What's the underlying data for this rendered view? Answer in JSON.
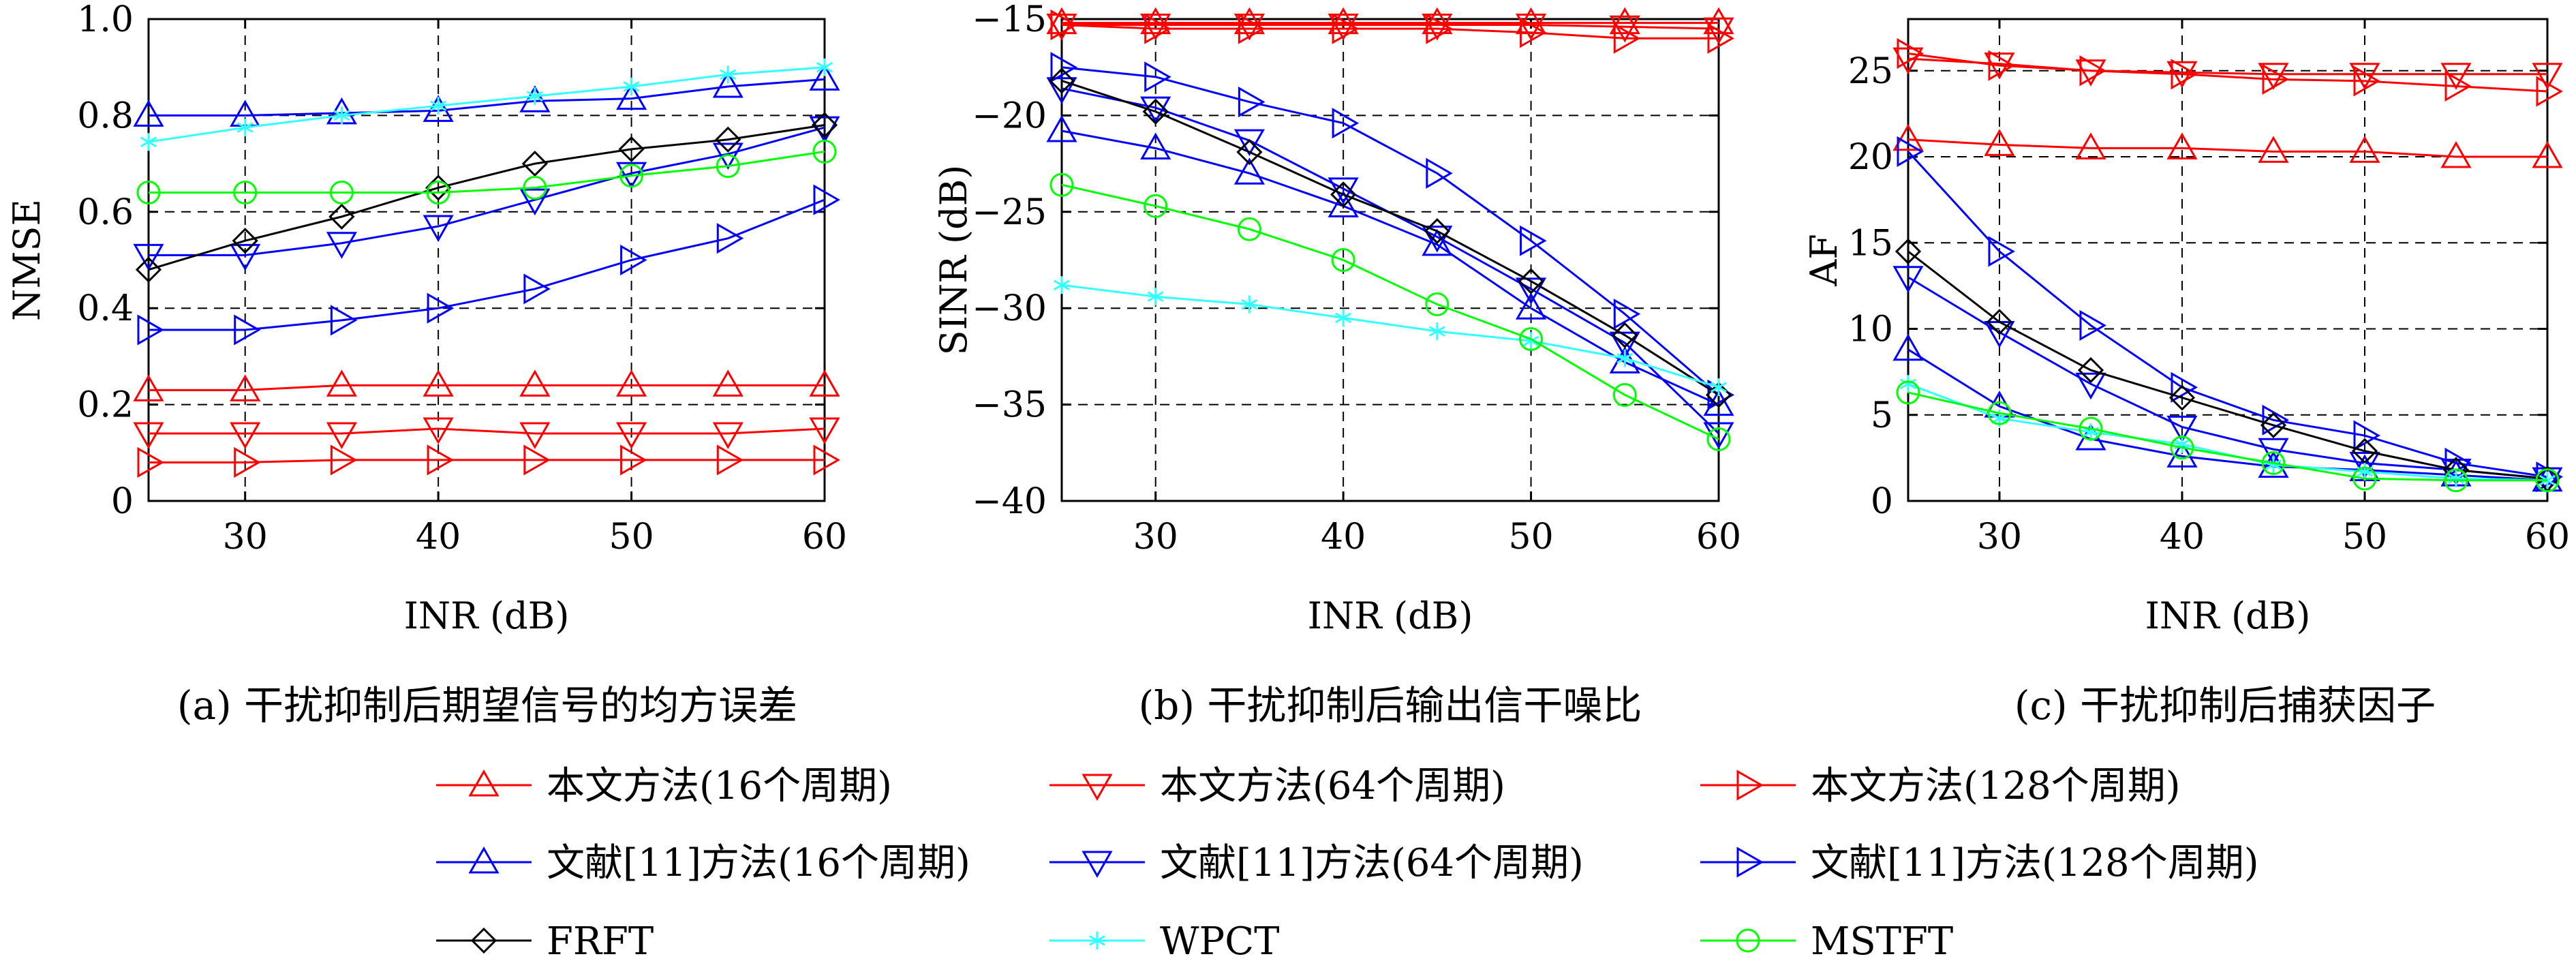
{
  "colors": {
    "red": "#ff0000",
    "blue": "#0000ff",
    "black": "#000000",
    "cyan": "#33ffff",
    "green": "#00ff00"
  },
  "legend": [
    {
      "name": "本文方法(16个周期)",
      "color": "#ff0000",
      "marker": "triangle-up"
    },
    {
      "name": "本文方法(64个周期)",
      "color": "#ff0000",
      "marker": "triangle-down"
    },
    {
      "name": "本文方法(128个周期)",
      "color": "#ff0000",
      "marker": "triangle-right"
    },
    {
      "name": "文献[11]方法(16个周期)",
      "color": "#0000ff",
      "marker": "triangle-up"
    },
    {
      "name": "文献[11]方法(64个周期)",
      "color": "#0000ff",
      "marker": "triangle-down"
    },
    {
      "name": "文献[11]方法(128个周期)",
      "color": "#0000ff",
      "marker": "triangle-right"
    },
    {
      "name": "FRFT",
      "color": "#000000",
      "marker": "diamond"
    },
    {
      "name": "WPCT",
      "color": "#33ffff",
      "marker": "asterisk"
    },
    {
      "name": "MSTFT",
      "color": "#00ff00",
      "marker": "circle"
    }
  ],
  "chart_data": [
    {
      "type": "line",
      "caption": "(a) 干扰抑制后期望信号的均方误差",
      "xlabel": "INR (dB)",
      "ylabel": "NMSE",
      "xlim": [
        25,
        60
      ],
      "ylim": [
        0,
        1.0
      ],
      "xticks": [
        30,
        40,
        50,
        60
      ],
      "yticks": [
        0,
        0.2,
        0.4,
        0.6,
        0.8,
        1.0
      ],
      "ytick_labels": [
        "0",
        "0.2",
        "0.4",
        "0.6",
        "0.8",
        "1.0"
      ],
      "grid": true,
      "x": [
        25,
        30,
        35,
        40,
        45,
        50,
        55,
        60
      ],
      "series": [
        {
          "name": "本文方法(16个周期)",
          "values": [
            0.23,
            0.23,
            0.24,
            0.24,
            0.24,
            0.24,
            0.24,
            0.24
          ]
        },
        {
          "name": "本文方法(64个周期)",
          "values": [
            0.14,
            0.14,
            0.14,
            0.15,
            0.14,
            0.14,
            0.14,
            0.15
          ]
        },
        {
          "name": "本文方法(128个周期)",
          "values": [
            0.08,
            0.08,
            0.085,
            0.085,
            0.085,
            0.085,
            0.085,
            0.085
          ]
        },
        {
          "name": "文献[11]方法(16个周期)",
          "values": [
            0.8,
            0.8,
            0.805,
            0.81,
            0.83,
            0.835,
            0.86,
            0.875
          ]
        },
        {
          "name": "文献[11]方法(64个周期)",
          "values": [
            0.51,
            0.51,
            0.535,
            0.57,
            0.625,
            0.68,
            0.72,
            0.775
          ]
        },
        {
          "name": "文献[11]方法(128个周期)",
          "values": [
            0.355,
            0.355,
            0.375,
            0.4,
            0.44,
            0.5,
            0.545,
            0.625
          ]
        },
        {
          "name": "FRFT",
          "values": [
            0.48,
            0.54,
            0.59,
            0.65,
            0.7,
            0.73,
            0.75,
            0.78
          ]
        },
        {
          "name": "WPCT",
          "values": [
            0.745,
            0.775,
            0.8,
            0.82,
            0.84,
            0.86,
            0.885,
            0.9
          ]
        },
        {
          "name": "MSTFT",
          "values": [
            0.64,
            0.64,
            0.64,
            0.64,
            0.65,
            0.675,
            0.695,
            0.725
          ]
        }
      ]
    },
    {
      "type": "line",
      "caption": "(b) 干扰抑制后输出信干噪比",
      "xlabel": "INR (dB)",
      "ylabel": "SINR (dB)",
      "xlim": [
        25,
        60
      ],
      "ylim": [
        -40,
        -15
      ],
      "xticks": [
        30,
        40,
        50,
        60
      ],
      "yticks": [
        -40,
        -35,
        -30,
        -25,
        -20,
        -15
      ],
      "ytick_labels": [
        "−40",
        "−35",
        "−30",
        "−25",
        "−20",
        "−15"
      ],
      "grid": true,
      "x": [
        25,
        30,
        35,
        40,
        45,
        50,
        55,
        60
      ],
      "series": [
        {
          "name": "本文方法(16个周期)",
          "values": [
            -15.2,
            -15.2,
            -15.2,
            -15.2,
            -15.2,
            -15.2,
            -15.2,
            -15.2
          ]
        },
        {
          "name": "本文方法(64个周期)",
          "values": [
            -15.3,
            -15.3,
            -15.3,
            -15.3,
            -15.3,
            -15.3,
            -15.4,
            -15.5
          ]
        },
        {
          "name": "本文方法(128个周期)",
          "values": [
            -15.3,
            -15.5,
            -15.5,
            -15.5,
            -15.5,
            -15.7,
            -16.0,
            -16.0
          ]
        },
        {
          "name": "文献[11]方法(16个周期)",
          "values": [
            -20.8,
            -21.7,
            -23.0,
            -24.7,
            -26.7,
            -30.0,
            -32.8,
            -35.0
          ]
        },
        {
          "name": "文献[11]方法(64个周期)",
          "values": [
            -18.6,
            -19.6,
            -21.3,
            -23.8,
            -26.3,
            -29.0,
            -31.8,
            -36.5
          ]
        },
        {
          "name": "文献[11]方法(128个周期)",
          "values": [
            -17.5,
            -18.0,
            -19.3,
            -20.4,
            -23.0,
            -26.5,
            -30.3,
            -34.5
          ]
        },
        {
          "name": "FRFT",
          "values": [
            -18.2,
            -19.8,
            -21.9,
            -24.1,
            -26.0,
            -28.6,
            -31.4,
            -34.5
          ]
        },
        {
          "name": "WPCT",
          "values": [
            -28.8,
            -29.4,
            -29.8,
            -30.5,
            -31.2,
            -31.7,
            -32.6,
            -34.1
          ]
        },
        {
          "name": "MSTFT",
          "values": [
            -23.6,
            -24.7,
            -25.9,
            -27.5,
            -29.8,
            -31.6,
            -34.5,
            -36.8
          ]
        }
      ]
    },
    {
      "type": "line",
      "caption": "(c) 干扰抑制后捕获因子",
      "xlabel": "INR (dB)",
      "ylabel": "AF",
      "xlim": [
        25,
        60
      ],
      "ylim": [
        0,
        28
      ],
      "xticks": [
        30,
        40,
        50,
        60
      ],
      "yticks": [
        0,
        5,
        10,
        15,
        20,
        25
      ],
      "ytick_labels": [
        "0",
        "5",
        "10",
        "15",
        "20",
        "25"
      ],
      "grid": true,
      "x": [
        25,
        30,
        35,
        40,
        45,
        50,
        55,
        60
      ],
      "series": [
        {
          "name": "本文方法(16个周期)",
          "values": [
            21.0,
            20.7,
            20.5,
            20.5,
            20.3,
            20.3,
            20.0,
            20.0
          ]
        },
        {
          "name": "本文方法(64个周期)",
          "values": [
            25.7,
            25.4,
            25.0,
            24.9,
            24.8,
            24.8,
            24.8,
            24.8
          ]
        },
        {
          "name": "本文方法(128个周期)",
          "values": [
            26.0,
            25.3,
            25.0,
            24.8,
            24.5,
            24.4,
            24.1,
            23.8
          ]
        },
        {
          "name": "文献[11]方法(16个周期)",
          "values": [
            8.8,
            5.5,
            3.6,
            2.6,
            2.0,
            1.8,
            1.5,
            1.2
          ]
        },
        {
          "name": "文献[11]方法(64个周期)",
          "values": [
            13.0,
            9.8,
            6.8,
            4.3,
            3.0,
            2.2,
            1.8,
            1.3
          ]
        },
        {
          "name": "文献[11]方法(128个周期)",
          "values": [
            20.3,
            14.5,
            10.2,
            6.6,
            4.7,
            3.8,
            2.2,
            1.4
          ]
        },
        {
          "name": "FRFT",
          "values": [
            14.5,
            10.4,
            7.6,
            6.0,
            4.4,
            2.9,
            1.8,
            1.3
          ]
        },
        {
          "name": "WPCT",
          "values": [
            6.8,
            4.8,
            4.0,
            3.3,
            2.1,
            1.7,
            1.3,
            1.2
          ]
        },
        {
          "name": "MSTFT",
          "values": [
            6.3,
            5.1,
            4.2,
            3.1,
            2.2,
            1.3,
            1.2,
            1.2
          ]
        }
      ]
    }
  ]
}
